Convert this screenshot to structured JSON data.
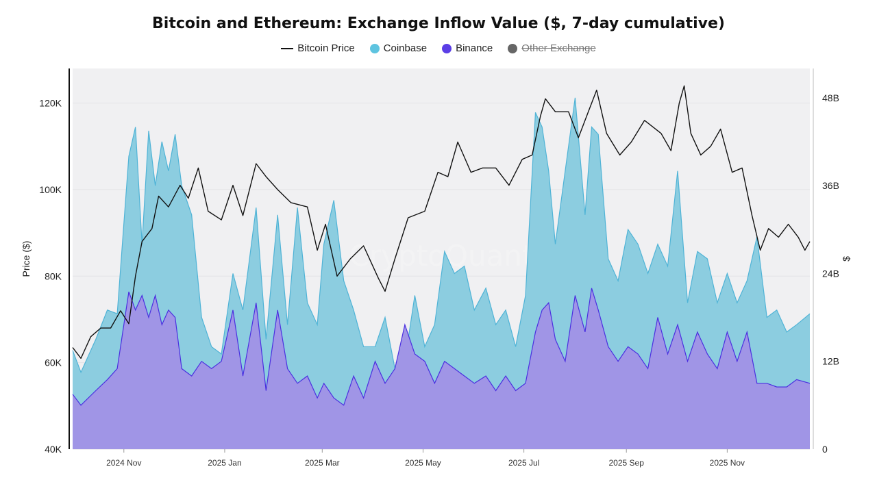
{
  "chart_data": {
    "type": "area",
    "title": "Bitcoin and Ethereum: Exchange Inflow Value ($, 7-day cumulative)",
    "ylabel": "Price ($)",
    "y2label": "$",
    "xlim": [
      "2024-10-01",
      "2025-12-21"
    ],
    "ylim": [
      40000,
      128000
    ],
    "y2lim": [
      0,
      52000000000
    ],
    "y_ticks": [
      40000,
      60000,
      80000,
      100000,
      120000
    ],
    "y_tick_labels": [
      "40K",
      "60K",
      "80K",
      "100K",
      "120K"
    ],
    "y2_ticks": [
      0,
      12000000000,
      24000000000,
      36000000000,
      48000000000
    ],
    "y2_tick_labels": [
      "0",
      "12B",
      "24B",
      "36B",
      "48B"
    ],
    "x_ticks": [
      "2024-11-01",
      "2025-01-01",
      "2025-03-01",
      "2025-05-01",
      "2025-07-01",
      "2025-09-01",
      "2025-11-01"
    ],
    "x_tick_labels": [
      "2024 Nov",
      "2025 Jan",
      "2025 Mar",
      "2025 May",
      "2025 Jul",
      "2025 Sep",
      "2025 Nov"
    ],
    "legend": [
      {
        "label": "Bitcoin Price",
        "color": "#111111",
        "marker": "line",
        "visible": true
      },
      {
        "label": "Coinbase",
        "color": "#5ec4e0",
        "marker": "dot",
        "visible": true
      },
      {
        "label": "Binance",
        "color": "#5b3ee6",
        "marker": "dot",
        "visible": true
      },
      {
        "label": "Other Exchange",
        "color": "#666666",
        "marker": "dot",
        "visible": false
      }
    ],
    "grid": true,
    "legend_position": "top-center",
    "watermark": "CryptoQuant",
    "series": [
      {
        "name": "Coinbase",
        "axis": "right",
        "stacked_total": true,
        "color": "#8ccde0",
        "x": [
          "2024-10-01",
          "2024-10-06",
          "2024-10-15",
          "2024-10-22",
          "2024-10-28",
          "2024-11-04",
          "2024-11-08",
          "2024-11-12",
          "2024-11-16",
          "2024-11-20",
          "2024-11-24",
          "2024-11-28",
          "2024-12-02",
          "2024-12-06",
          "2024-12-12",
          "2024-12-18",
          "2024-12-24",
          "2024-12-30",
          "2025-01-06",
          "2025-01-12",
          "2025-01-20",
          "2025-01-26",
          "2025-02-02",
          "2025-02-08",
          "2025-02-14",
          "2025-02-20",
          "2025-02-26",
          "2025-03-02",
          "2025-03-08",
          "2025-03-14",
          "2025-03-20",
          "2025-03-26",
          "2025-04-02",
          "2025-04-08",
          "2025-04-14",
          "2025-04-20",
          "2025-04-26",
          "2025-05-02",
          "2025-05-08",
          "2025-05-14",
          "2025-05-20",
          "2025-05-26",
          "2025-06-01",
          "2025-06-08",
          "2025-06-14",
          "2025-06-20",
          "2025-06-26",
          "2025-07-02",
          "2025-07-08",
          "2025-07-12",
          "2025-07-16",
          "2025-07-20",
          "2025-07-26",
          "2025-08-01",
          "2025-08-07",
          "2025-08-11",
          "2025-08-15",
          "2025-08-21",
          "2025-08-27",
          "2025-09-02",
          "2025-09-08",
          "2025-09-14",
          "2025-09-20",
          "2025-09-26",
          "2025-10-02",
          "2025-10-08",
          "2025-10-14",
          "2025-10-20",
          "2025-10-26",
          "2025-11-01",
          "2025-11-07",
          "2025-11-13",
          "2025-11-19",
          "2025-11-25",
          "2025-12-01",
          "2025-12-07",
          "2025-12-13",
          "2025-12-21"
        ],
        "values": [
          13500000000.0,
          10500000000.0,
          15000000000.0,
          19000000000.0,
          18500000000.0,
          40000000000.0,
          44000000000.0,
          28000000000.0,
          43500000000.0,
          36000000000.0,
          42000000000.0,
          38000000000.0,
          43000000000.0,
          36000000000.0,
          32000000000.0,
          18000000000.0,
          14000000000.0,
          13000000000.0,
          24000000000.0,
          19000000000.0,
          33000000000.0,
          15000000000.0,
          32000000000.0,
          17000000000.0,
          33000000000.0,
          20000000000.0,
          17000000000.0,
          28000000000.0,
          34000000000.0,
          23000000000.0,
          19000000000.0,
          14000000000.0,
          14000000000.0,
          18000000000.0,
          11000000000.0,
          12000000000.0,
          21000000000.0,
          14000000000.0,
          17000000000.0,
          27000000000.0,
          24000000000.0,
          25000000000.0,
          19000000000.0,
          22000000000.0,
          17000000000.0,
          19000000000.0,
          14000000000.0,
          21000000000.0,
          46000000000.0,
          44000000000.0,
          38000000000.0,
          28000000000.0,
          38000000000.0,
          48000000000.0,
          32000000000.0,
          44000000000.0,
          43000000000.0,
          26000000000.0,
          23000000000.0,
          30000000000.0,
          28000000000.0,
          24000000000.0,
          28000000000.0,
          25000000000.0,
          38000000000.0,
          20000000000.0,
          27000000000.0,
          26000000000.0,
          20000000000.0,
          24000000000.0,
          20000000000.0,
          23000000000.0,
          29000000000.0,
          18000000000.0,
          19000000000.0,
          16000000000.0,
          17000000000.0,
          18500000000.0
        ]
      },
      {
        "name": "Binance",
        "axis": "right",
        "color": "#a095e6",
        "x": [
          "2024-10-01",
          "2024-10-06",
          "2024-10-15",
          "2024-10-22",
          "2024-10-28",
          "2024-11-04",
          "2024-11-08",
          "2024-11-12",
          "2024-11-16",
          "2024-11-20",
          "2024-11-24",
          "2024-11-28",
          "2024-12-02",
          "2024-12-06",
          "2024-12-12",
          "2024-12-18",
          "2024-12-24",
          "2024-12-30",
          "2025-01-06",
          "2025-01-12",
          "2025-01-20",
          "2025-01-26",
          "2025-02-02",
          "2025-02-08",
          "2025-02-14",
          "2025-02-20",
          "2025-02-26",
          "2025-03-02",
          "2025-03-08",
          "2025-03-14",
          "2025-03-20",
          "2025-03-26",
          "2025-04-02",
          "2025-04-08",
          "2025-04-14",
          "2025-04-20",
          "2025-04-26",
          "2025-05-02",
          "2025-05-08",
          "2025-05-14",
          "2025-05-20",
          "2025-05-26",
          "2025-06-01",
          "2025-06-08",
          "2025-06-14",
          "2025-06-20",
          "2025-06-26",
          "2025-07-02",
          "2025-07-08",
          "2025-07-12",
          "2025-07-16",
          "2025-07-20",
          "2025-07-26",
          "2025-08-01",
          "2025-08-07",
          "2025-08-11",
          "2025-08-15",
          "2025-08-21",
          "2025-08-27",
          "2025-09-02",
          "2025-09-08",
          "2025-09-14",
          "2025-09-20",
          "2025-09-26",
          "2025-10-02",
          "2025-10-08",
          "2025-10-14",
          "2025-10-20",
          "2025-10-26",
          "2025-11-01",
          "2025-11-07",
          "2025-11-13",
          "2025-11-19",
          "2025-11-25",
          "2025-12-01",
          "2025-12-07",
          "2025-12-13",
          "2025-12-21"
        ],
        "values": [
          7500000000.0,
          6000000000.0,
          8000000000.0,
          9500000000.0,
          11000000000.0,
          21500000000.0,
          19000000000.0,
          21000000000.0,
          18000000000.0,
          21000000000.0,
          17000000000.0,
          19000000000.0,
          18000000000.0,
          11000000000.0,
          10000000000.0,
          12000000000.0,
          11000000000.0,
          12000000000.0,
          19000000000.0,
          10000000000.0,
          20000000000.0,
          8000000000.0,
          19000000000.0,
          11000000000.0,
          9000000000.0,
          10000000000.0,
          7000000000.0,
          9000000000.0,
          7000000000.0,
          6000000000.0,
          10000000000.0,
          7000000000.0,
          12000000000.0,
          9000000000.0,
          11000000000.0,
          17000000000.0,
          13000000000.0,
          12000000000.0,
          9000000000.0,
          12000000000.0,
          11000000000.0,
          10000000000.0,
          9000000000.0,
          10000000000.0,
          8000000000.0,
          10000000000.0,
          8000000000.0,
          9000000000.0,
          16000000000.0,
          19000000000.0,
          20000000000.0,
          15000000000.0,
          12000000000.0,
          21000000000.0,
          16000000000.0,
          22000000000.0,
          19000000000.0,
          14000000000.0,
          12000000000.0,
          14000000000.0,
          13000000000.0,
          11000000000.0,
          18000000000.0,
          13000000000.0,
          17000000000.0,
          12000000000.0,
          16000000000.0,
          13000000000.0,
          11000000000.0,
          16000000000.0,
          12000000000.0,
          16000000000.0,
          9000000000.0,
          9000000000.0,
          8500000000.0,
          8500000000.0,
          9500000000.0,
          9000000000.0
        ]
      },
      {
        "name": "Bitcoin Price",
        "axis": "left",
        "color": "#111111",
        "x": [
          "2024-10-01",
          "2024-10-06",
          "2024-10-12",
          "2024-10-18",
          "2024-10-24",
          "2024-10-30",
          "2024-11-04",
          "2024-11-08",
          "2024-11-12",
          "2024-11-18",
          "2024-11-22",
          "2024-11-28",
          "2024-12-05",
          "2024-12-10",
          "2024-12-16",
          "2024-12-22",
          "2024-12-30",
          "2025-01-06",
          "2025-01-12",
          "2025-01-20",
          "2025-01-26",
          "2025-02-02",
          "2025-02-10",
          "2025-02-20",
          "2025-02-26",
          "2025-03-03",
          "2025-03-10",
          "2025-03-18",
          "2025-03-26",
          "2025-04-04",
          "2025-04-08",
          "2025-04-14",
          "2025-04-22",
          "2025-05-02",
          "2025-05-10",
          "2025-05-16",
          "2025-05-22",
          "2025-05-30",
          "2025-06-06",
          "2025-06-14",
          "2025-06-22",
          "2025-06-30",
          "2025-07-06",
          "2025-07-11",
          "2025-07-14",
          "2025-07-20",
          "2025-07-28",
          "2025-08-03",
          "2025-08-10",
          "2025-08-14",
          "2025-08-20",
          "2025-08-28",
          "2025-09-04",
          "2025-09-12",
          "2025-09-22",
          "2025-09-28",
          "2025-10-03",
          "2025-10-06",
          "2025-10-10",
          "2025-10-16",
          "2025-10-22",
          "2025-10-28",
          "2025-11-04",
          "2025-11-10",
          "2025-11-16",
          "2025-11-21",
          "2025-11-26",
          "2025-12-02",
          "2025-12-08",
          "2025-12-14",
          "2025-12-18",
          "2025-12-21"
        ],
        "values": [
          63500,
          61000,
          66000,
          68000,
          68000,
          72000,
          69000,
          80000,
          88000,
          91000,
          98500,
          96000,
          101000,
          98000,
          105000,
          95000,
          93000,
          101000,
          94000,
          106000,
          103000,
          100000,
          97000,
          96000,
          86000,
          92000,
          80000,
          84000,
          87000,
          79500,
          76500,
          84000,
          93500,
          95000,
          104000,
          103000,
          111000,
          104000,
          105000,
          105000,
          101000,
          107000,
          108000,
          117000,
          121000,
          118000,
          118000,
          112000,
          119000,
          123000,
          113000,
          108000,
          111000,
          116000,
          113000,
          109000,
          120000,
          124000,
          113000,
          108000,
          110000,
          114000,
          104000,
          105000,
          94000,
          86000,
          91000,
          89000,
          92000,
          89000,
          86000,
          88000
        ]
      }
    ]
  }
}
